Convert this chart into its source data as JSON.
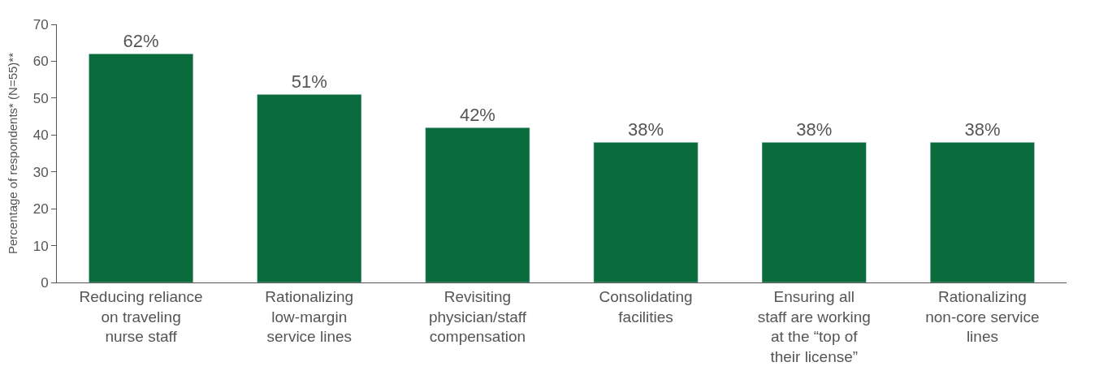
{
  "chart_data": {
    "type": "bar",
    "ylabel": "Percentage of respondents* (N=55)**",
    "categories": [
      "Reducing reliance on traveling nurse staff",
      "Rationalizing low-margin service lines",
      "Revisiting physician/staff compensation",
      "Consolidating facilities",
      "Ensuring all staff are working at the “top of their license”",
      "Rationalizing non-core service lines"
    ],
    "values": [
      62,
      51,
      42,
      38,
      38,
      38
    ],
    "value_labels": [
      "62%",
      "51%",
      "42%",
      "38%",
      "38%",
      "38%"
    ],
    "color": "#0a6b3d",
    "ylim": [
      0,
      70
    ],
    "yticks": [
      0,
      10,
      20,
      30,
      40,
      50,
      60,
      70
    ],
    "legend": false
  }
}
